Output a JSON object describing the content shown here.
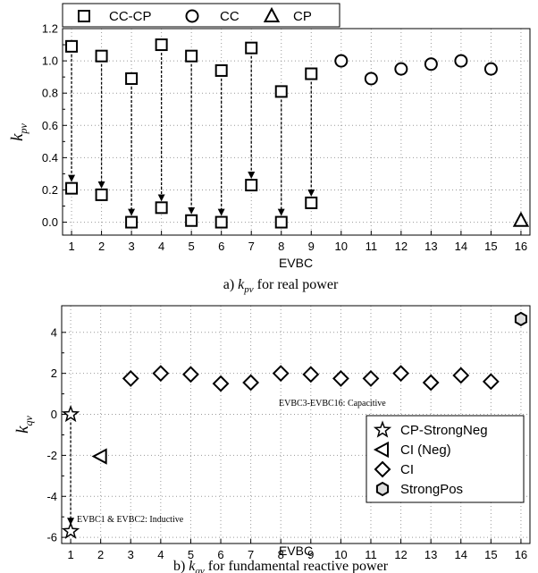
{
  "chart_data": [
    {
      "type": "scatter",
      "caption": "a) k_pv for real power",
      "caption_parts": {
        "prefix": "a) ",
        "sym": "k",
        "sub": "pv",
        "suffix": " for real power"
      },
      "xlabel": "EVBC",
      "ylabel": {
        "sym": "k",
        "sub": "pv"
      },
      "xlim": [
        0.7,
        16.3
      ],
      "ylim": [
        -0.08,
        1.2
      ],
      "xticks": [
        "1",
        "2",
        "3",
        "4",
        "5",
        "6",
        "7",
        "8",
        "9",
        "10",
        "11",
        "12",
        "13",
        "14",
        "15",
        "16"
      ],
      "yticks": [
        "0.0",
        "0.2",
        "0.4",
        "0.6",
        "0.8",
        "1.0",
        "1.2"
      ],
      "grid": true,
      "legend_position": "top",
      "series": [
        {
          "name": "CC-CP",
          "marker": "square",
          "points": [
            [
              1,
              1.09
            ],
            [
              1,
              0.21
            ],
            [
              2,
              1.03
            ],
            [
              2,
              0.17
            ],
            [
              3,
              0.89
            ],
            [
              3,
              0.0
            ],
            [
              4,
              1.1
            ],
            [
              4,
              0.09
            ],
            [
              5,
              1.03
            ],
            [
              5,
              0.01
            ],
            [
              6,
              0.94
            ],
            [
              6,
              0.0
            ],
            [
              7,
              1.08
            ],
            [
              7,
              0.23
            ],
            [
              8,
              0.81
            ],
            [
              8,
              0.0
            ],
            [
              9,
              0.92
            ],
            [
              9,
              0.12
            ]
          ]
        },
        {
          "name": "CC",
          "marker": "circle",
          "points": [
            [
              10,
              1.0
            ],
            [
              11,
              0.89
            ],
            [
              12,
              0.95
            ],
            [
              13,
              0.98
            ],
            [
              14,
              1.0
            ],
            [
              15,
              0.95
            ]
          ]
        },
        {
          "name": "CP",
          "marker": "triangle",
          "points": [
            [
              16,
              0.01
            ]
          ]
        }
      ],
      "arrows": [
        {
          "x": 1,
          "from": 1.09,
          "to": 0.21
        },
        {
          "x": 2,
          "from": 1.03,
          "to": 0.17
        },
        {
          "x": 3,
          "from": 0.89,
          "to": 0.0
        },
        {
          "x": 4,
          "from": 1.1,
          "to": 0.09
        },
        {
          "x": 5,
          "from": 1.03,
          "to": 0.01
        },
        {
          "x": 6,
          "from": 0.94,
          "to": 0.0
        },
        {
          "x": 7,
          "from": 1.08,
          "to": 0.23
        },
        {
          "x": 8,
          "from": 0.81,
          "to": 0.0
        },
        {
          "x": 9,
          "from": 0.92,
          "to": 0.12
        }
      ]
    },
    {
      "type": "scatter",
      "caption": "b) k_qv for fundamental reactive power",
      "caption_parts": {
        "prefix": "b) ",
        "sym": "k",
        "sub": "qv",
        "suffix": " for fundamental reactive  power"
      },
      "xlabel": "EVBC",
      "ylabel": {
        "sym": "k",
        "sub": "qv"
      },
      "xlim": [
        0.7,
        16.3
      ],
      "ylim": [
        -6.3,
        5.3
      ],
      "xticks": [
        "1",
        "2",
        "3",
        "4",
        "5",
        "6",
        "7",
        "8",
        "9",
        "10",
        "11",
        "12",
        "13",
        "14",
        "15",
        "16"
      ],
      "yticks": [
        "-6",
        "-4",
        "-2",
        "0",
        "2",
        "4"
      ],
      "grid": true,
      "legend_position": "bottom-right",
      "annotations": [
        {
          "text": "EVBC3-EVBC16: Capacitive",
          "x": 8.7,
          "y": 0.3
        },
        {
          "text": "EVBC1 & EVBC2: Inductive",
          "x": 1.2,
          "y": -5.4
        }
      ],
      "series": [
        {
          "name": "CP-StrongNeg",
          "marker": "star",
          "points": [
            [
              1,
              0.0
            ],
            [
              1,
              -5.7
            ]
          ]
        },
        {
          "name": "CI (Neg)",
          "marker": "left-triangle",
          "points": [
            [
              2,
              -2.05
            ]
          ]
        },
        {
          "name": "CI",
          "marker": "diamond",
          "points": [
            [
              3,
              1.75
            ],
            [
              4,
              2.0
            ],
            [
              5,
              1.95
            ],
            [
              6,
              1.5
            ],
            [
              7,
              1.55
            ],
            [
              8,
              2.0
            ],
            [
              9,
              1.95
            ],
            [
              10,
              1.75
            ],
            [
              11,
              1.75
            ],
            [
              12,
              2.0
            ],
            [
              13,
              1.55
            ],
            [
              14,
              1.9
            ],
            [
              15,
              1.6
            ]
          ]
        },
        {
          "name": "StrongPos",
          "marker": "hexagon",
          "points": [
            [
              16,
              4.65
            ]
          ]
        }
      ],
      "arrows": [
        {
          "x": 1,
          "from": 0.0,
          "to": -5.7
        }
      ]
    }
  ]
}
